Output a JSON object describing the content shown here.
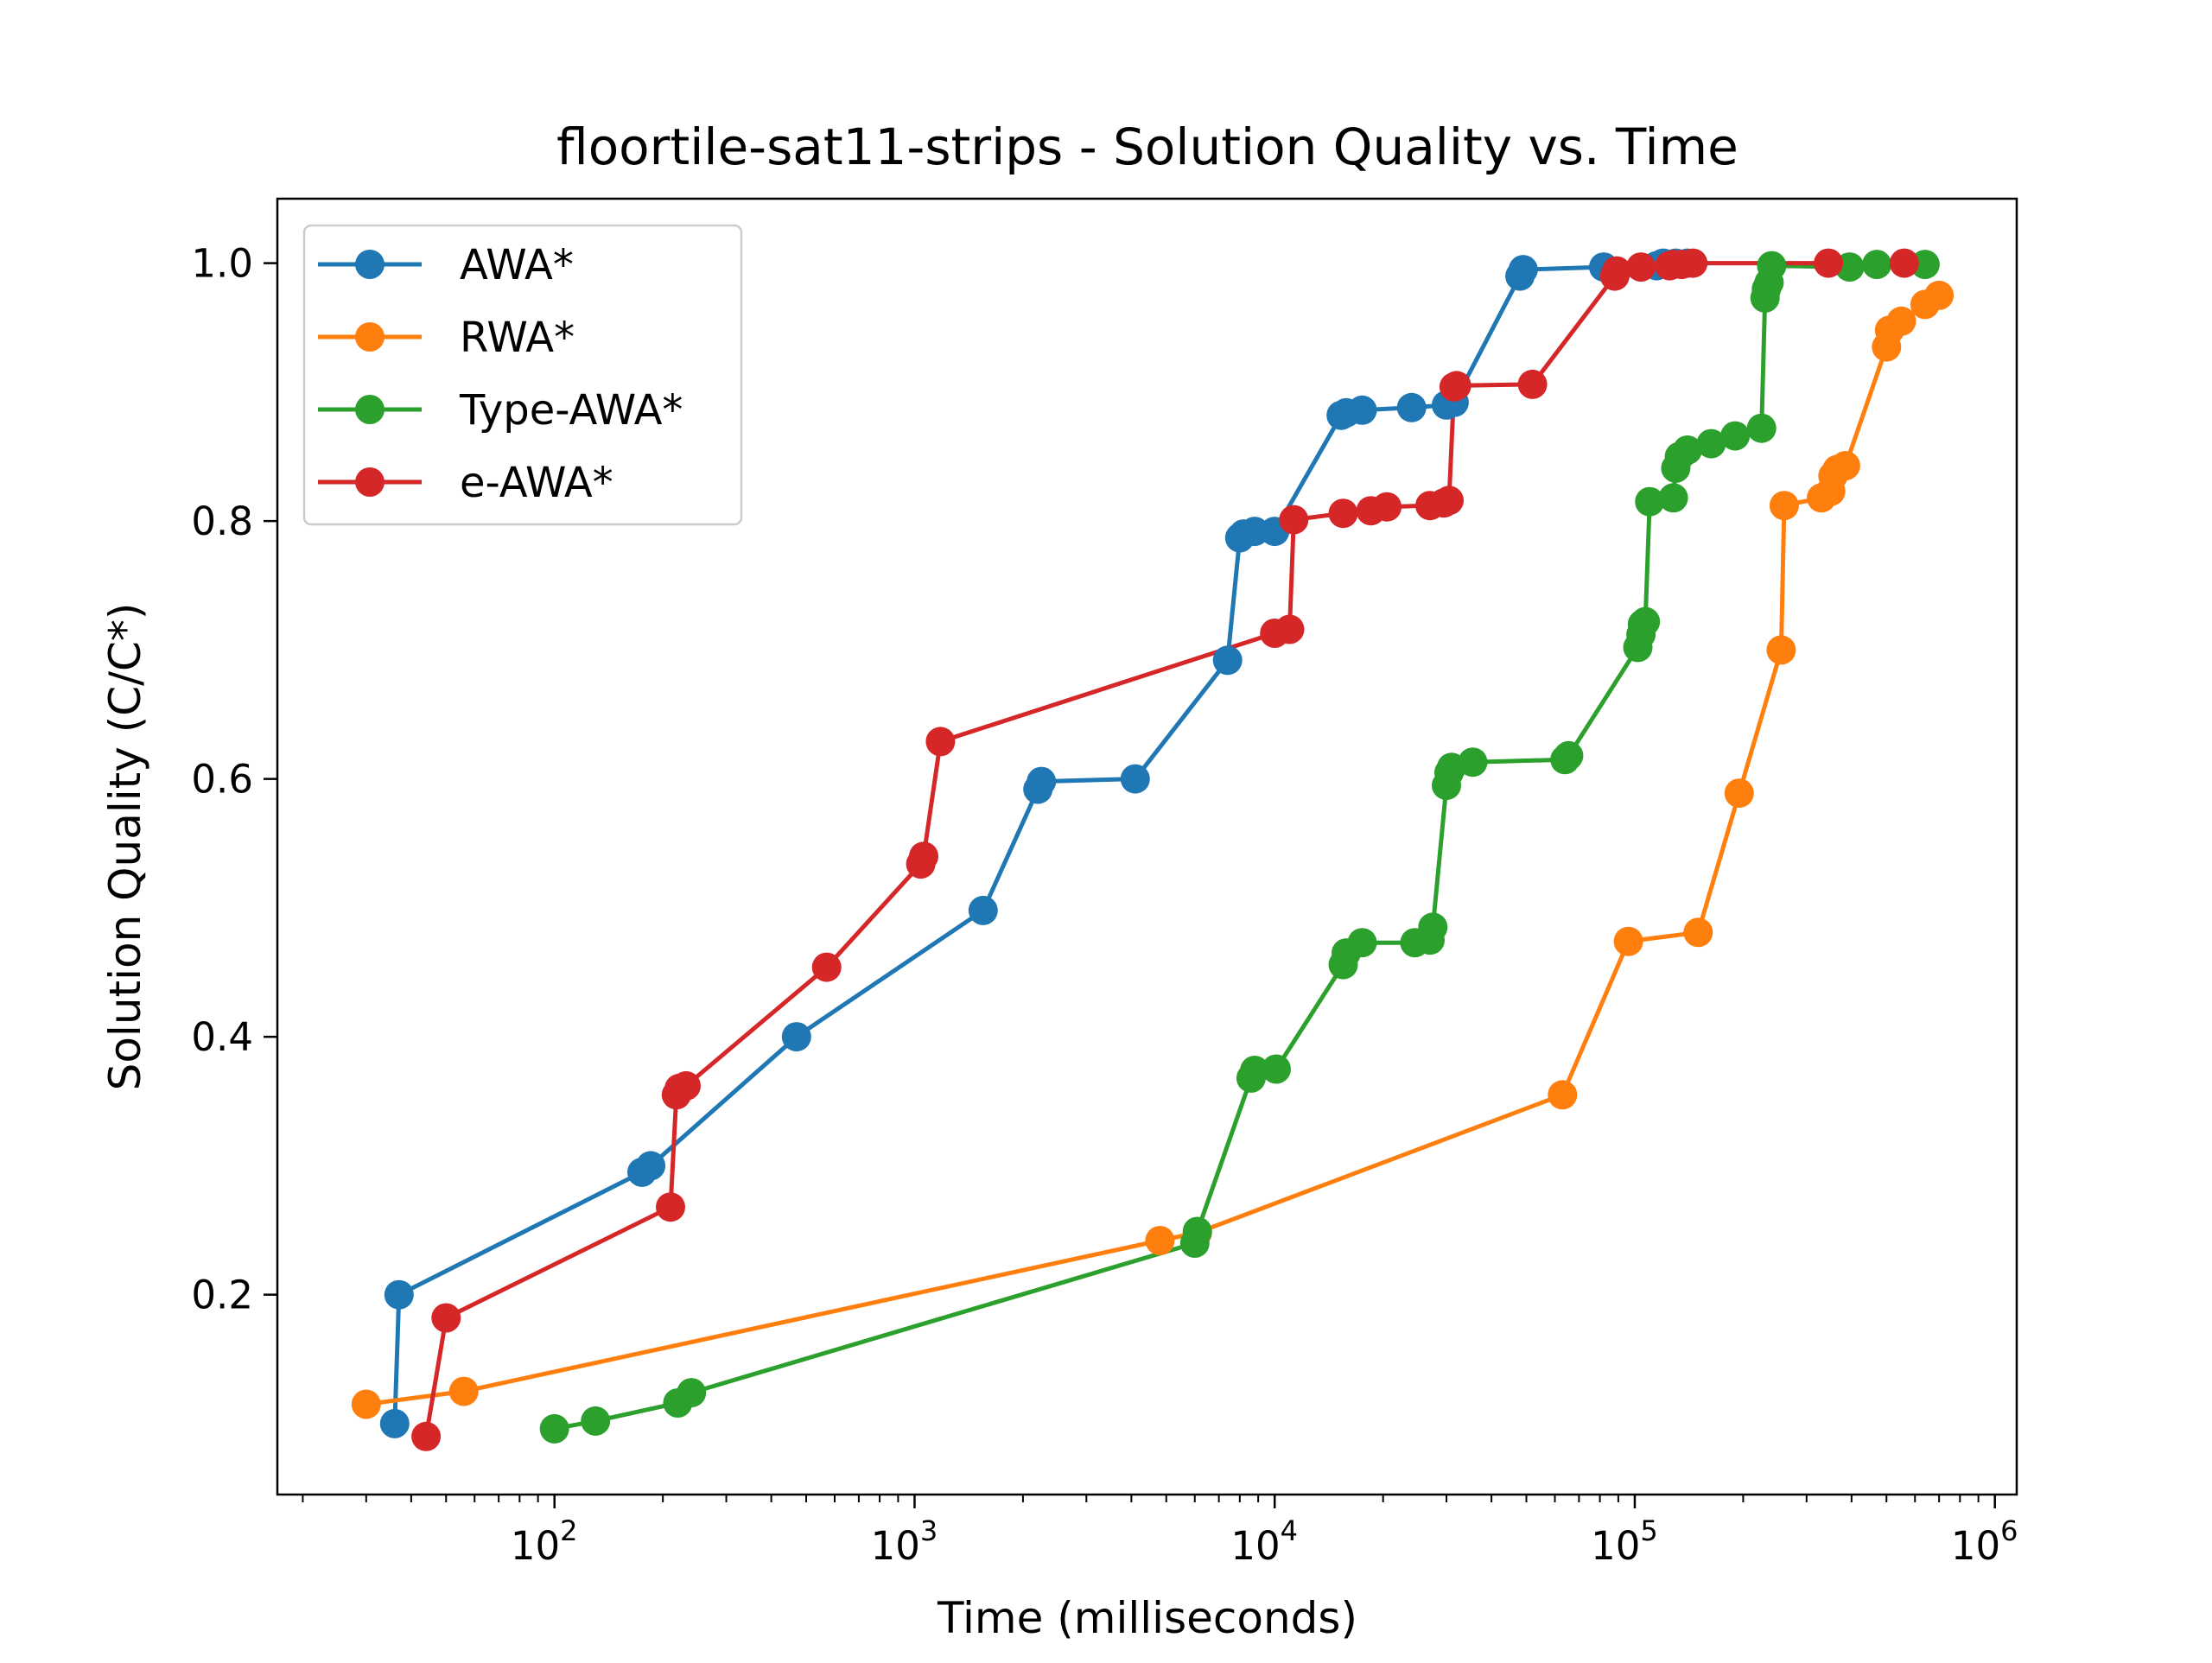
{
  "chart_data": {
    "type": "line",
    "title": "floortile-sat11-strips - Solution Quality vs. Time",
    "xlabel": "Time (milliseconds)",
    "ylabel": "Solution Quality (C/C*)",
    "xscale": "log",
    "xlim": [
      17,
      1150000
    ],
    "ylim": [
      0.045,
      1.05
    ],
    "grid": false,
    "legend_position": "top-left",
    "x_ticks": [
      {
        "value": 100,
        "base": "10",
        "exp": "2"
      },
      {
        "value": 1000,
        "base": "10",
        "exp": "3"
      },
      {
        "value": 10000,
        "base": "10",
        "exp": "4"
      },
      {
        "value": 100000,
        "base": "10",
        "exp": "5"
      },
      {
        "value": 1000000,
        "base": "10",
        "exp": "6"
      }
    ],
    "y_ticks": [
      "0.2",
      "0.4",
      "0.6",
      "0.8",
      "1.0"
    ],
    "series": [
      {
        "name": "AWA*",
        "color": "#1f77b4",
        "points": [
          [
            36,
            0.1
          ],
          [
            37,
            0.2
          ],
          [
            175,
            0.295
          ],
          [
            185,
            0.3
          ],
          [
            470,
            0.4
          ],
          [
            1550,
            0.498
          ],
          [
            2200,
            0.592
          ],
          [
            2250,
            0.598
          ],
          [
            4100,
            0.6
          ],
          [
            7400,
            0.692
          ],
          [
            8000,
            0.787
          ],
          [
            8200,
            0.79
          ],
          [
            8800,
            0.792
          ],
          [
            10000,
            0.792
          ],
          [
            15300,
            0.882
          ],
          [
            15800,
            0.884
          ],
          [
            17500,
            0.886
          ],
          [
            24000,
            0.888
          ],
          [
            30000,
            0.89
          ],
          [
            31500,
            0.892
          ],
          [
            48000,
            0.99
          ],
          [
            49000,
            0.995
          ],
          [
            82000,
            0.997
          ],
          [
            115000,
            0.998
          ],
          [
            120000,
            1.0
          ],
          [
            130000,
            1.0
          ],
          [
            140000,
            1.0
          ]
        ]
      },
      {
        "name": "RWA*",
        "color": "#ff7f0e",
        "points": [
          [
            30,
            0.115
          ],
          [
            56,
            0.125
          ],
          [
            4800,
            0.242
          ],
          [
            6100,
            0.248
          ],
          [
            63000,
            0.355
          ],
          [
            96000,
            0.474
          ],
          [
            150000,
            0.481
          ],
          [
            195000,
            0.589
          ],
          [
            255000,
            0.7
          ],
          [
            260000,
            0.812
          ],
          [
            330000,
            0.818
          ],
          [
            350000,
            0.823
          ],
          [
            355000,
            0.835
          ],
          [
            365000,
            0.84
          ],
          [
            385000,
            0.843
          ],
          [
            500000,
            0.935
          ],
          [
            510000,
            0.948
          ],
          [
            550000,
            0.955
          ],
          [
            640000,
            0.968
          ],
          [
            700000,
            0.975
          ]
        ]
      },
      {
        "name": "Type-AWA*",
        "color": "#2ca02c",
        "points": [
          [
            100,
            0.096
          ],
          [
            130,
            0.102
          ],
          [
            220,
            0.116
          ],
          [
            240,
            0.124
          ],
          [
            6000,
            0.24
          ],
          [
            6100,
            0.249
          ],
          [
            8600,
            0.368
          ],
          [
            8800,
            0.374
          ],
          [
            10100,
            0.375
          ],
          [
            15500,
            0.456
          ],
          [
            15800,
            0.465
          ],
          [
            17500,
            0.473
          ],
          [
            24500,
            0.473
          ],
          [
            27000,
            0.475
          ],
          [
            27500,
            0.485
          ],
          [
            30000,
            0.595
          ],
          [
            30500,
            0.605
          ],
          [
            31000,
            0.609
          ],
          [
            35500,
            0.613
          ],
          [
            64000,
            0.615
          ],
          [
            65500,
            0.618
          ],
          [
            102000,
            0.702
          ],
          [
            104000,
            0.712
          ],
          [
            105000,
            0.72
          ],
          [
            107000,
            0.722
          ],
          [
            110000,
            0.815
          ],
          [
            128000,
            0.818
          ],
          [
            130000,
            0.841
          ],
          [
            133000,
            0.85
          ],
          [
            140000,
            0.855
          ],
          [
            163000,
            0.86
          ],
          [
            190000,
            0.866
          ],
          [
            225000,
            0.872
          ],
          [
            230000,
            0.973
          ],
          [
            232000,
            0.98
          ],
          [
            236000,
            0.985
          ],
          [
            240000,
            0.998
          ],
          [
            395000,
            0.997
          ],
          [
            470000,
            0.999
          ],
          [
            640000,
            0.999
          ]
        ]
      },
      {
        "name": "e-AWA*",
        "color": "#d62728",
        "points": [
          [
            44,
            0.09
          ],
          [
            50,
            0.182
          ],
          [
            210,
            0.268
          ],
          [
            218,
            0.355
          ],
          [
            222,
            0.36
          ],
          [
            232,
            0.362
          ],
          [
            570,
            0.454
          ],
          [
            1040,
            0.534
          ],
          [
            1060,
            0.54
          ],
          [
            1180,
            0.629
          ],
          [
            10000,
            0.713
          ],
          [
            11000,
            0.716
          ],
          [
            11300,
            0.801
          ],
          [
            15500,
            0.806
          ],
          [
            18500,
            0.808
          ],
          [
            20500,
            0.811
          ],
          [
            27000,
            0.812
          ],
          [
            29500,
            0.814
          ],
          [
            30500,
            0.816
          ],
          [
            31500,
            0.904
          ],
          [
            32000,
            0.905
          ],
          [
            52000,
            0.906
          ],
          [
            88000,
            0.99
          ],
          [
            89000,
            0.994
          ],
          [
            104000,
            0.997
          ],
          [
            125000,
            0.998
          ],
          [
            128000,
            0.999
          ],
          [
            135000,
            0.999
          ],
          [
            145000,
            1.0
          ],
          [
            345000,
            1.0
          ],
          [
            560000,
            1.0
          ]
        ]
      }
    ]
  }
}
